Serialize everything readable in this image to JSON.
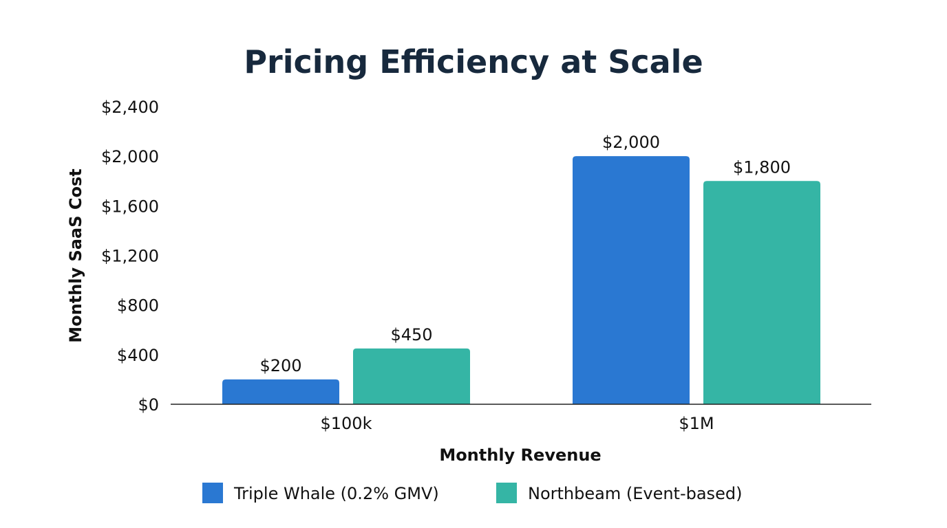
{
  "chart_data": {
    "type": "bar",
    "title": "Pricing Efficiency at Scale",
    "xlabel": "Monthly Revenue",
    "ylabel": "Monthly SaaS Cost",
    "categories": [
      "$100k",
      "$1M"
    ],
    "series": [
      {
        "name": "Triple Whale (0.2% GMV)",
        "values": [
          200,
          2000
        ],
        "labels": [
          "$200",
          "$2,000"
        ],
        "color": "#2a78d2"
      },
      {
        "name": "Northbeam (Event-based)",
        "values": [
          450,
          1800
        ],
        "labels": [
          "$450",
          "$1,800"
        ],
        "color": "#35b5a5"
      }
    ],
    "ylim": [
      0,
      2400
    ],
    "yticks": [
      0,
      400,
      800,
      1200,
      1600,
      2000,
      2400
    ],
    "ytick_labels": [
      "$0",
      "$400",
      "$800",
      "$1,200",
      "$1,600",
      "$2,000",
      "$2,400"
    ],
    "grid": false,
    "legend_position": "bottom"
  }
}
